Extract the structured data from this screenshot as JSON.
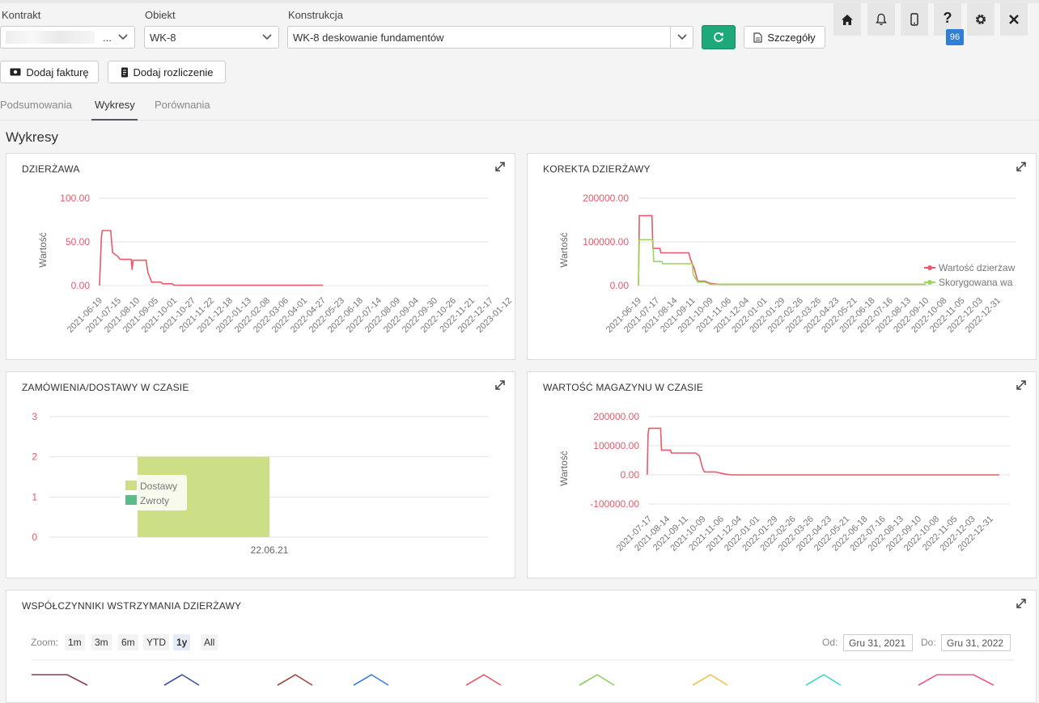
{
  "filters": {
    "kontrakt_label": "Kontrakt",
    "kontrakt_value_suffix": "...",
    "obiekt_label": "Obiekt",
    "obiekt_value": "WK-8",
    "konstrukcja_label": "Konstrukcja",
    "konstrukcja_value": "WK-8 deskowanie fundamentów",
    "details_label": "Szczegóły"
  },
  "notifications_count": "96",
  "actions": {
    "add_invoice": "Dodaj fakturę",
    "add_settlement": "Dodaj rozliczenie"
  },
  "tabs": [
    "Podsumowania",
    "Wykresy",
    "Porównania"
  ],
  "section_title": "Wykresy",
  "colors": {
    "red": "#e8596a",
    "green": "#9dd65a",
    "lightgreen": "#cddf86",
    "teal": "#5dbb8a",
    "accent": "#1fa97a",
    "badge": "#2f7fd6"
  },
  "chart_data": [
    {
      "id": "dzierzawa",
      "title": "DZIERŻAWA",
      "type": "line",
      "ylabel": "Wartość",
      "ylim": [
        0,
        100
      ],
      "yticks": [
        "100.00",
        "50.00",
        "0.00"
      ],
      "categories": [
        "2021-06-19",
        "2021-07-15",
        "2021-08-10",
        "2021-09-05",
        "2021-10-01",
        "2021-10-27",
        "2021-11-22",
        "2021-12-18",
        "2022-01-13",
        "2022-02-08",
        "2022-03-06",
        "2022-04-01",
        "2022-04-27",
        "2022-05-23",
        "2022-06-18",
        "2022-07-14",
        "2022-08-09",
        "2022-09-04",
        "2022-09-30",
        "2022-10-26",
        "2022-11-21",
        "2022-12-17",
        "2023-01-12"
      ],
      "series": [
        {
          "name": "Dzierżawa",
          "color": "#e8596a",
          "points": [
            [
              0,
              0
            ],
            [
              0.1,
              55
            ],
            [
              0.15,
              63
            ],
            [
              0.6,
              63
            ],
            [
              0.7,
              38
            ],
            [
              1.0,
              33
            ],
            [
              1.1,
              30
            ],
            [
              1.7,
              30
            ],
            [
              1.75,
              18
            ],
            [
              1.8,
              29
            ],
            [
              2.5,
              29
            ],
            [
              2.6,
              15
            ],
            [
              2.8,
              4
            ],
            [
              3.3,
              4
            ],
            [
              3.4,
              2
            ],
            [
              3.9,
              2
            ],
            [
              4.0,
              0.5
            ],
            [
              12.0,
              0.5
            ]
          ]
        }
      ]
    },
    {
      "id": "korekta",
      "title": "KOREKTA DZIERŻAWY",
      "type": "line",
      "ylabel": "Wartość",
      "ylim": [
        0,
        200000
      ],
      "yticks": [
        "200000.00",
        "100000.00",
        "0.00"
      ],
      "categories": [
        "2021-06-19",
        "2021-07-17",
        "2021-08-14",
        "2021-09-11",
        "2021-10-09",
        "2021-11-06",
        "2021-12-04",
        "2022-01-01",
        "2022-01-29",
        "2022-02-26",
        "2022-03-26",
        "2022-04-23",
        "2022-05-21",
        "2022-06-18",
        "2022-07-16",
        "2022-08-13",
        "2022-09-10",
        "2022-10-08",
        "2022-11-05",
        "2022-12-03",
        "2022-12-31"
      ],
      "legend": [
        "Wartość dzierżaw",
        "Skorygowana wa"
      ],
      "series": [
        {
          "name": "Wartość dzierżawy",
          "color": "#e8596a",
          "points": [
            [
              0,
              0
            ],
            [
              0.05,
              160000
            ],
            [
              0.75,
              160000
            ],
            [
              0.8,
              85000
            ],
            [
              1.2,
              85000
            ],
            [
              1.25,
              75000
            ],
            [
              2.8,
              75000
            ],
            [
              2.9,
              60000
            ],
            [
              3.1,
              40000
            ],
            [
              3.3,
              10000
            ],
            [
              3.7,
              10000
            ],
            [
              4.0,
              5000
            ],
            [
              4.5,
              3000
            ],
            [
              16.0,
              3000
            ]
          ]
        },
        {
          "name": "Skorygowana wartość",
          "color": "#9dd65a",
          "points": [
            [
              0,
              0
            ],
            [
              0.05,
              105000
            ],
            [
              0.8,
              105000
            ],
            [
              0.85,
              55000
            ],
            [
              1.3,
              55000
            ],
            [
              1.35,
              50000
            ],
            [
              3.0,
              50000
            ],
            [
              3.05,
              25000
            ],
            [
              3.3,
              8000
            ],
            [
              3.7,
              8000
            ],
            [
              4.0,
              3000
            ],
            [
              16.0,
              3000
            ]
          ]
        }
      ]
    },
    {
      "id": "zamowienia",
      "title": "ZAMÓWIENIA/DOSTAWY W CZASIE",
      "type": "bar",
      "ylim": [
        0,
        3
      ],
      "yticks": [
        "3",
        "2",
        "1",
        "0"
      ],
      "categories": [
        "22.06.21"
      ],
      "legend": [
        "Dostawy",
        "Zwroty"
      ],
      "series": [
        {
          "name": "Dostawy",
          "color": "#cddf86",
          "values": [
            2
          ]
        },
        {
          "name": "Zwroty",
          "color": "#5dbb8a",
          "values": [
            0
          ]
        }
      ]
    },
    {
      "id": "magazyn",
      "title": "WARTOŚĆ MAGAZYNU W CZASIE",
      "type": "line",
      "ylabel": "Wartość",
      "ylim": [
        -100000,
        200000
      ],
      "yticks": [
        "200000.00",
        "100000.00",
        "0.00",
        "-100000.00"
      ],
      "categories": [
        "2021-07-17",
        "2021-08-14",
        "2021-09-11",
        "2021-10-09",
        "2021-11-06",
        "2021-12-04",
        "2022-01-01",
        "2022-01-29",
        "2022-02-26",
        "2022-03-26",
        "2022-04-23",
        "2022-05-21",
        "2022-06-18",
        "2022-07-16",
        "2022-08-13",
        "2022-09-10",
        "2022-10-08",
        "2022-11-05",
        "2022-12-03",
        "2022-12-31"
      ],
      "series": [
        {
          "name": "Wartość magazynu",
          "color": "#e8596a",
          "points": [
            [
              -0.1,
              0
            ],
            [
              -0.05,
              140000
            ],
            [
              0,
              160000
            ],
            [
              0.65,
              160000
            ],
            [
              0.7,
              85000
            ],
            [
              1.2,
              85000
            ],
            [
              1.25,
              75000
            ],
            [
              2.6,
              75000
            ],
            [
              2.8,
              65000
            ],
            [
              3.0,
              20000
            ],
            [
              3.1,
              10000
            ],
            [
              3.7,
              10000
            ],
            [
              4.2,
              3000
            ],
            [
              4.6,
              0
            ],
            [
              19.5,
              0
            ]
          ]
        }
      ]
    }
  ],
  "bottom_panel": {
    "title": "WSPÓŁCZYNNIKI WSTRZYMANIA DZIERŻAWY",
    "zoom_label": "Zoom:",
    "zoom_options": [
      "1m",
      "3m",
      "6m",
      "YTD",
      "1y",
      "All"
    ],
    "zoom_selected": "1y",
    "from_label": "Od:",
    "from_value": "Gru 31, 2021",
    "to_label": "Do:",
    "to_value": "Gru 31, 2022"
  }
}
